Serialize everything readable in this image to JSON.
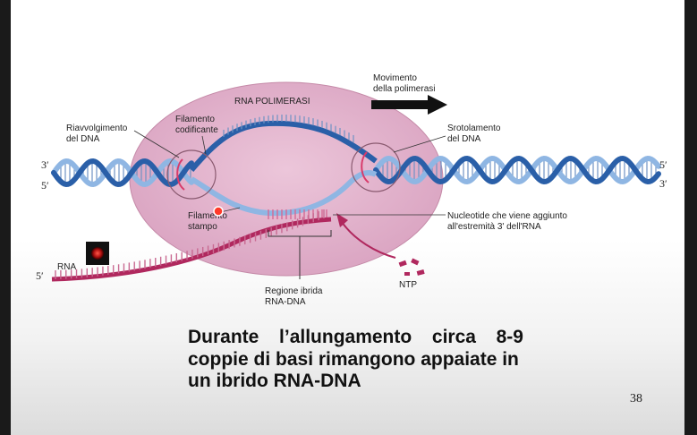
{
  "diagram": {
    "enzyme_label": "RNA POLIMERASI",
    "movement_label_1": "Movimento",
    "movement_label_2": "della polimerasi",
    "rewinding_label_1": "Riavvolgimento",
    "rewinding_label_2": "del DNA",
    "unwinding_label_1": "Srotolamento",
    "unwinding_label_2": "del DNA",
    "coding_strand_label_1": "Filamento",
    "coding_strand_label_2": "codificante",
    "template_strand_label_1": "Filamento",
    "template_strand_label_2": "stampo",
    "nucleotide_label_1": "Nucleotide che viene aggiunto",
    "nucleotide_label_2": "all'estremità 3' dell'RNA",
    "hybrid_label_1": "Regione ibrida",
    "hybrid_label_2": "RNA-DNA",
    "rna_label": "RNA",
    "ntp_label": "NTP",
    "end_3_left": "3′",
    "end_5_left": "5′",
    "end_5_right": "5′",
    "end_3_right": "3′",
    "end_5_rna": "5′"
  },
  "caption": {
    "line1_words": [
      "Durante",
      "l’allungamento",
      "circa",
      "8-9"
    ],
    "line2": "coppie di basi rimangono appaiate in",
    "line3": "un ibrido RNA-DNA"
  },
  "page_number": "38",
  "colors": {
    "enzyme": "#e3b4cc",
    "dna_dark": "#2a5fa8",
    "dna_light": "#8fb6e3",
    "rna": "#b0285e",
    "arrow": "#b0285e"
  }
}
